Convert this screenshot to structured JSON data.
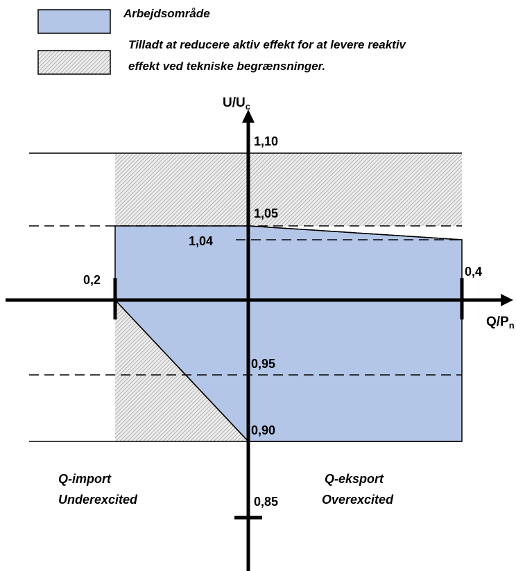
{
  "legend": [
    {
      "label": "Arbejdsområde",
      "swatch": "solid",
      "color": "#b4c6e7"
    },
    {
      "label_lines": [
        "Tilladt at reducere aktiv effekt for at levere reaktiv",
        "effekt ved tekniske begrænsninger."
      ],
      "swatch": "hatched",
      "color": "#d9d9d9"
    }
  ],
  "axes": {
    "y_label_main": "U/U",
    "y_label_sub": "c",
    "x_label_main": "Q/P",
    "x_label_sub": "n"
  },
  "y_values": {
    "v110": "1,10",
    "v105": "1,05",
    "v104": "1,04",
    "v095": "0,95",
    "v090": "0,90",
    "v085": "0,85"
  },
  "x_values": {
    "left": "0,2",
    "right": "0,4"
  },
  "regions": {
    "left_line1": "Q-import",
    "left_line2": "Underexcited",
    "right_line1": "Q-eksport",
    "right_line2": "Overexcited"
  },
  "colors": {
    "operating_area": "#b4c6e7",
    "hatched_area": "#d9d9d9",
    "lines": "#000000"
  }
}
